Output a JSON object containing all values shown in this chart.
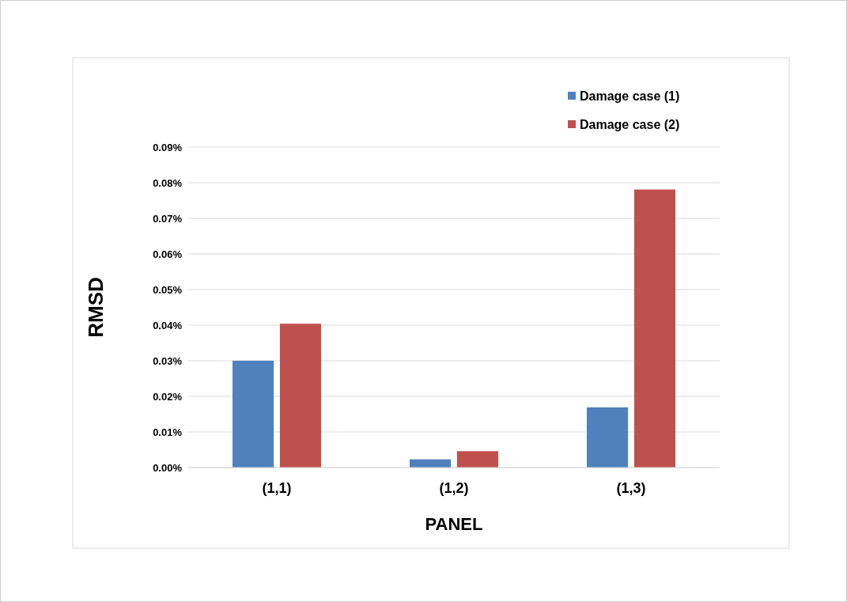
{
  "chart_data": {
    "type": "bar",
    "xlabel": "PANEL",
    "ylabel": "RMSD",
    "categories": [
      "(1,1)",
      "(1,2)",
      "(1,3)"
    ],
    "series": [
      {
        "name": "Damage case (1)",
        "color": "#4f81bd",
        "values": [
          0.03,
          0.0023,
          0.0169
        ]
      },
      {
        "name": "Damage case (2)",
        "color": "#c0504d",
        "values": [
          0.0404,
          0.0046,
          0.0781
        ]
      }
    ],
    "ylim": [
      0,
      0.09
    ],
    "yticks": [
      {
        "value": 0,
        "label": "0.00%"
      },
      {
        "value": 0.01,
        "label": "0.01%"
      },
      {
        "value": 0.02,
        "label": "0.02%"
      },
      {
        "value": 0.03,
        "label": "0.03%"
      },
      {
        "value": 0.04,
        "label": "0.04%"
      },
      {
        "value": 0.05,
        "label": "0.05%"
      },
      {
        "value": 0.06,
        "label": "0.06%"
      },
      {
        "value": 0.07,
        "label": "0.07%"
      },
      {
        "value": 0.08,
        "label": "0.08%"
      },
      {
        "value": 0.09,
        "label": "0.09%"
      }
    ],
    "grid": "y",
    "legend": "top right"
  }
}
